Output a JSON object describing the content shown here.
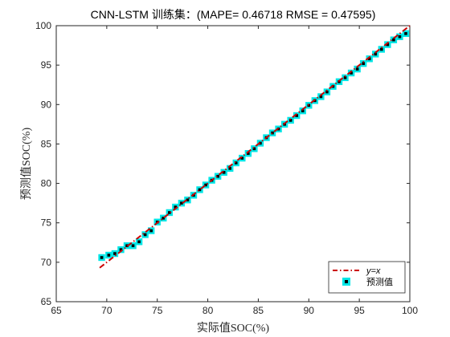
{
  "chart_data": {
    "type": "scatter",
    "title": "CNN-LSTM 训练集：(MAPE= 0.46718 RMSE  = 0.47595)",
    "xlabel": "实际值SOC(%)",
    "ylabel": "预测值SOC(%)",
    "xlim": [
      65,
      100
    ],
    "ylim": [
      65,
      100
    ],
    "xticks": [
      65,
      70,
      75,
      80,
      85,
      90,
      95,
      100
    ],
    "yticks": [
      65,
      70,
      75,
      80,
      85,
      90,
      95,
      100
    ],
    "grid": false,
    "legend_position": "bottom-right",
    "reference_line": {
      "name": "y=x",
      "x": [
        69.3,
        100
      ],
      "y": [
        69.3,
        100
      ],
      "color": "#cc0000",
      "style": "dash-dot"
    },
    "series": [
      {
        "name": "预测值",
        "marker": "square",
        "fill_color": "#00e6e6",
        "inner_color": "#000000",
        "x": [
          69.5,
          70.2,
          70.8,
          71.4,
          72.0,
          72.6,
          73.2,
          73.8,
          74.4,
          75.0,
          75.6,
          76.2,
          76.8,
          77.4,
          78.0,
          78.6,
          79.2,
          79.8,
          80.4,
          81.0,
          81.6,
          82.2,
          82.8,
          83.4,
          84.0,
          84.6,
          85.2,
          85.8,
          86.4,
          87.0,
          87.6,
          88.2,
          88.8,
          89.4,
          90.0,
          90.6,
          91.2,
          91.8,
          92.4,
          93.0,
          93.6,
          94.2,
          94.8,
          95.4,
          96.0,
          96.6,
          97.2,
          97.8,
          98.4,
          99.0,
          99.6
        ],
        "y": [
          70.6,
          70.9,
          71.1,
          71.6,
          72.1,
          72.1,
          72.6,
          73.5,
          74.0,
          75.1,
          75.6,
          76.3,
          77.0,
          77.5,
          77.9,
          78.5,
          79.2,
          79.8,
          80.4,
          80.9,
          81.4,
          81.9,
          82.6,
          83.2,
          83.8,
          84.4,
          85.1,
          85.8,
          86.4,
          86.9,
          87.5,
          88.0,
          88.6,
          89.2,
          89.9,
          90.5,
          91.0,
          91.6,
          92.3,
          92.9,
          93.4,
          94.0,
          94.5,
          95.2,
          95.8,
          96.4,
          97.0,
          97.6,
          98.2,
          98.6,
          99.0
        ]
      }
    ]
  }
}
